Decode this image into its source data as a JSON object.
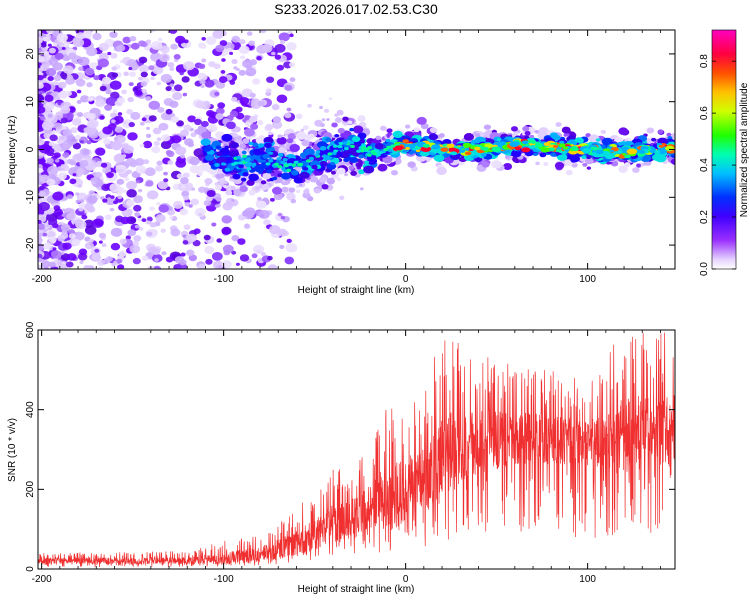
{
  "title": "S233.2026.017.02.53.C30",
  "chart_data": [
    {
      "type": "heatmap",
      "title": "S233.2026.017.02.53.C30",
      "xlabel": "Height of straight line (km)",
      "ylabel": "Frequency (Hz)",
      "xlim": [
        -202,
        148
      ],
      "ylim": [
        -25,
        25
      ],
      "xticks": [
        -200,
        -100,
        0,
        100
      ],
      "yticks": [
        -20,
        -10,
        0,
        10,
        20
      ],
      "colorbar": {
        "label": "Normalized spectral amplitude",
        "range": [
          0.0,
          0.92
        ],
        "ticks": [
          0.0,
          0.2,
          0.4,
          0.6,
          0.8
        ],
        "colormap": [
          "#ffffff",
          "#e0c8ff",
          "#7a00ff",
          "#0000ff",
          "#00ffff",
          "#00ff00",
          "#ffff00",
          "#ff8000",
          "#ff0000",
          "#ff00c0"
        ]
      },
      "ridge": {
        "x": [
          -110,
          -90,
          -75,
          -60,
          -45,
          -30,
          -20,
          -10,
          0,
          20,
          40,
          60,
          80,
          100,
          120,
          145
        ],
        "freq": [
          0,
          -3,
          -2,
          -4,
          -1,
          1,
          -1,
          0,
          1,
          0,
          0,
          1,
          0.5,
          0,
          -0.5,
          0.5
        ]
      }
    },
    {
      "type": "line",
      "xlabel": "Height of straight line (km)",
      "ylabel": "SNR (10 * v/v)",
      "xlim": [
        -202,
        148
      ],
      "ylim": [
        0,
        600
      ],
      "xticks": [
        -200,
        -100,
        0,
        100
      ],
      "yticks": [
        0,
        200,
        400,
        600
      ],
      "series": [
        {
          "name": "SNR",
          "color": "#f03030",
          "envelope_x": [
            -202,
            -120,
            -100,
            -80,
            -60,
            -50,
            -40,
            -30,
            -20,
            -10,
            0,
            10,
            20,
            30,
            40,
            60,
            80,
            100,
            120,
            148
          ],
          "envelope_mean": [
            20,
            20,
            25,
            35,
            60,
            85,
            110,
            120,
            150,
            170,
            190,
            220,
            270,
            300,
            310,
            320,
            320,
            310,
            330,
            340
          ],
          "envelope_max": [
            40,
            45,
            70,
            90,
            150,
            200,
            250,
            260,
            300,
            420,
            420,
            450,
            600,
            570,
            550,
            510,
            500,
            470,
            600,
            600
          ]
        }
      ]
    }
  ]
}
